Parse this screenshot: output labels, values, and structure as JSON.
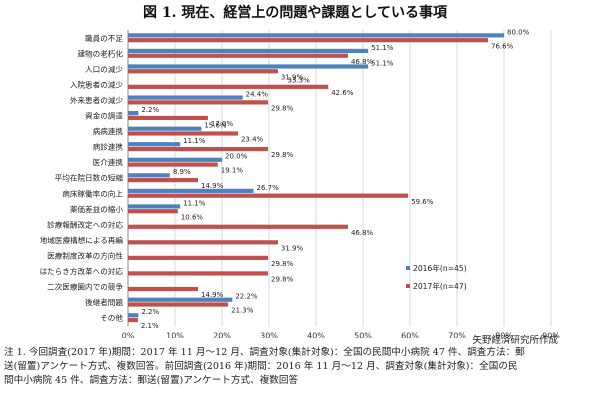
{
  "title": "図 1. 現在、経営上の問題や課題としている事項",
  "source": "矢野経済研究所作成",
  "notes": [
    "注 1. 今回調査(2017 年)期間：2017 年 11 月～12 月、調査対象(集計対象)：全国の民間中小病院 47 件、調査方法：郵",
    "送(留置)アンケート方式、複数回答。前回調査(2016 年)期間：2016 年 11 月～12 月、調査対象(集計対象)：全国の民",
    "間中小病院 45 件、調査方法：郵送(留置)アンケート方式、複数回答"
  ],
  "chart_data": {
    "type": "bar",
    "orientation": "horizontal",
    "categories": [
      "職員の不足",
      "建物の老朽化",
      "人口の減少",
      "入院患者の減少",
      "外来患者の減少",
      "資金の調達",
      "病病連携",
      "病診連携",
      "医介連携",
      "平均在院日数の短縮",
      "病床稼働率の向上",
      "薬価差益の縮小",
      "診療報酬改定への対応",
      "地域医療構想による再編",
      "医療制度改革の方向性",
      "はたらき方改革への対応",
      "二次医療圏内での競争",
      "後継者問題",
      "その他"
    ],
    "series": [
      {
        "name": "2016年(n=45)",
        "color": "#4f81bd",
        "values": [
          80.0,
          51.1,
          51.1,
          null,
          24.4,
          2.2,
          15.6,
          11.1,
          20.0,
          8.9,
          26.7,
          11.1,
          null,
          null,
          null,
          null,
          null,
          22.2,
          2.2
        ]
      },
      {
        "name": "2017年(n=47)",
        "color": "#c0504d",
        "values": [
          76.6,
          46.8,
          31.9,
          42.6,
          29.8,
          17.0,
          23.4,
          29.8,
          19.1,
          14.9,
          59.6,
          10.6,
          46.8,
          31.9,
          29.8,
          29.8,
          14.9,
          21.3,
          2.1
        ]
      }
    ],
    "extra_labels": [
      {
        "category_index": 3,
        "text": "33.3%"
      }
    ],
    "xlim": [
      0,
      90
    ],
    "xticks": [
      "0%",
      "10%",
      "20%",
      "30%",
      "40%",
      "50%",
      "60%",
      "70%",
      "80%",
      "90%"
    ],
    "grid": true,
    "legend_position": "right"
  }
}
